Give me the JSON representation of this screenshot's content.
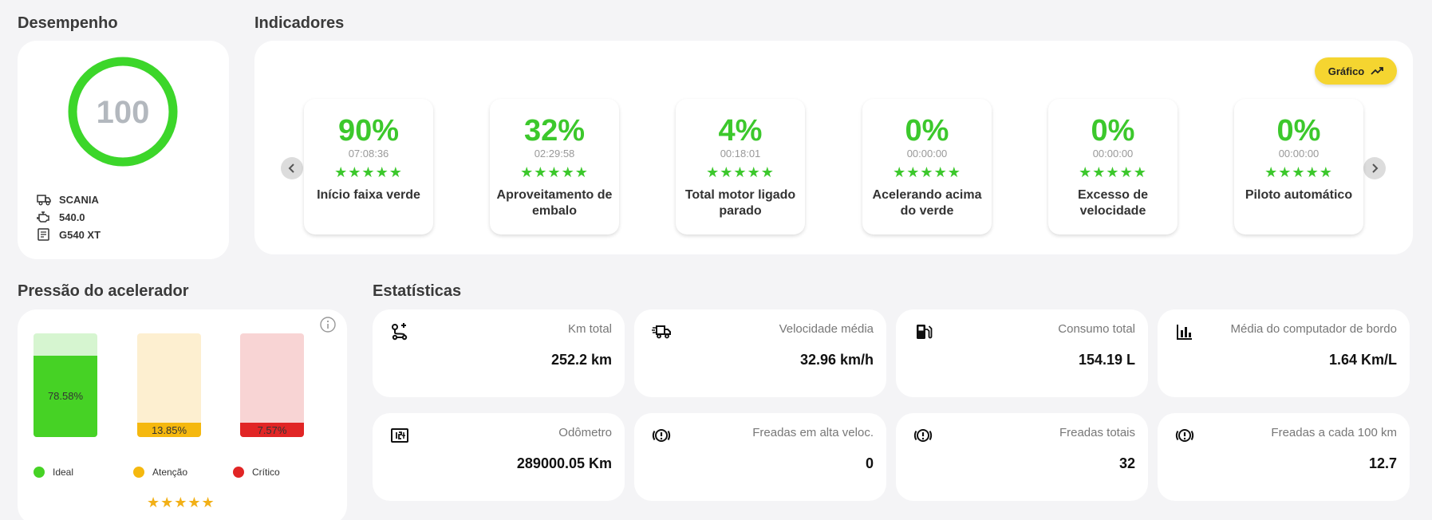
{
  "desempenho": {
    "title": "Desempenho",
    "score": "100",
    "score_fraction": 1.0,
    "ring_color": "#3cd62a",
    "brand": "SCANIA",
    "engine": "540.0",
    "model": "G540 XT"
  },
  "indicadores": {
    "title": "Indicadores",
    "graph_button": "Gráfico",
    "items": [
      {
        "pct": "90%",
        "time": "07:08:36",
        "stars": "★★★★★",
        "label": "Início faixa verde"
      },
      {
        "pct": "32%",
        "time": "02:29:58",
        "stars": "★★★★★",
        "label": "Aproveitamento de embalo"
      },
      {
        "pct": "4%",
        "time": "00:18:01",
        "stars": "★★★★★",
        "label": "Total motor ligado parado"
      },
      {
        "pct": "0%",
        "time": "00:00:00",
        "stars": "★★★★★",
        "label": "Acelerando acima do verde"
      },
      {
        "pct": "0%",
        "time": "00:00:00",
        "stars": "★★★★★",
        "label": "Excesso de velocidade"
      },
      {
        "pct": "0%",
        "time": "00:00:00",
        "stars": "★★★★★",
        "label": "Piloto automático"
      }
    ]
  },
  "pressao": {
    "title": "Pressão do acelerador",
    "stars": "★★★★★",
    "bars": [
      {
        "label": "78.58%",
        "value": 78.58,
        "fill": "#46d225",
        "bg": "#d6f5d0",
        "legend": "Ideal"
      },
      {
        "label": "13.85%",
        "value": 13.85,
        "fill": "#f5b80f",
        "bg": "#fdefd0",
        "legend": "Atenção"
      },
      {
        "label": "7.57%",
        "value": 7.57,
        "fill": "#e12525",
        "bg": "#f8d4d4",
        "legend": "Crítico"
      }
    ]
  },
  "estatisticas": {
    "title": "Estatísticas",
    "stats": [
      {
        "icon": "route-icon",
        "label": "Km total",
        "value": "252.2 km"
      },
      {
        "icon": "truck-speed-icon",
        "label": "Velocidade média",
        "value": "32.96 km/h"
      },
      {
        "icon": "fuel-pump-icon",
        "label": "Consumo total",
        "value": "154.19 L"
      },
      {
        "icon": "bar-chart-icon",
        "label": "Média do computador de bordo",
        "value": "1.64 Km/L"
      },
      {
        "icon": "odometer-icon",
        "label": "Odômetro",
        "value": "289000.05 Km"
      },
      {
        "icon": "brake-warning-icon",
        "label": "Freadas em alta veloc.",
        "value": "0"
      },
      {
        "icon": "brake-warning-icon",
        "label": "Freadas totais",
        "value": "32"
      },
      {
        "icon": "brake-warning-icon",
        "label": "Freadas a cada 100 km",
        "value": "12.7"
      }
    ]
  }
}
